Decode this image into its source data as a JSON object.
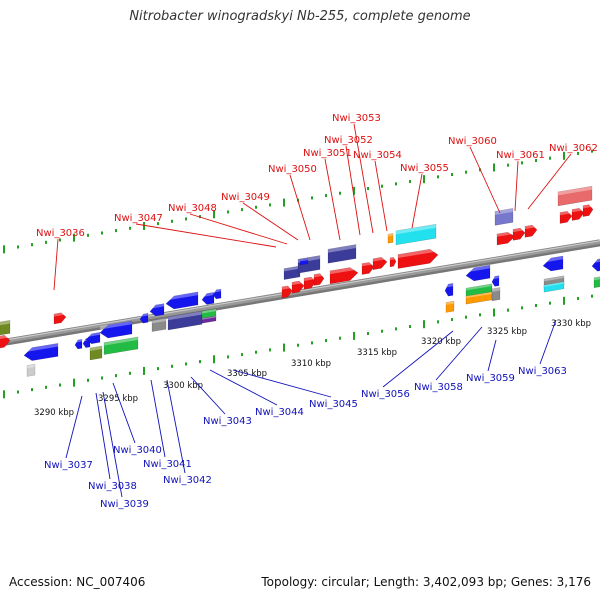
{
  "title": "Nitrobacter winogradskyi Nb-255, complete genome",
  "footer": {
    "accession": "Accession: NC_007406",
    "summary": "Topology: circular; Length: 3,402,093 bp; Genes: 3,176"
  },
  "colors": {
    "top_label": "#dd1111",
    "bottom_label": "#1111bb",
    "backbone": "#999999",
    "tick": "#22a022"
  },
  "ruler_labels": [
    "3290 kbp",
    "3295 kbp",
    "3300 kbp",
    "3305 kbp",
    "3310 kbp",
    "3315 kbp",
    "3320 kbp",
    "3325 kbp",
    "3330 kbp"
  ],
  "top_genes": [
    "Nwi_3036",
    "Nwi_3047",
    "Nwi_3048",
    "Nwi_3049",
    "Nwi_3050",
    "Nwi_3051",
    "Nwi_3052",
    "Nwi_3053",
    "Nwi_3054",
    "Nwi_3055",
    "Nwi_3060",
    "Nwi_3061",
    "Nwi_3062"
  ],
  "bottom_genes": [
    "Nwi_3037",
    "Nwi_3038",
    "Nwi_3039",
    "Nwi_3040",
    "Nwi_3041",
    "Nwi_3042",
    "Nwi_3043",
    "Nwi_3044",
    "Nwi_3045",
    "Nwi_3056",
    "Nwi_3058",
    "Nwi_3059",
    "Nwi_3063"
  ]
}
